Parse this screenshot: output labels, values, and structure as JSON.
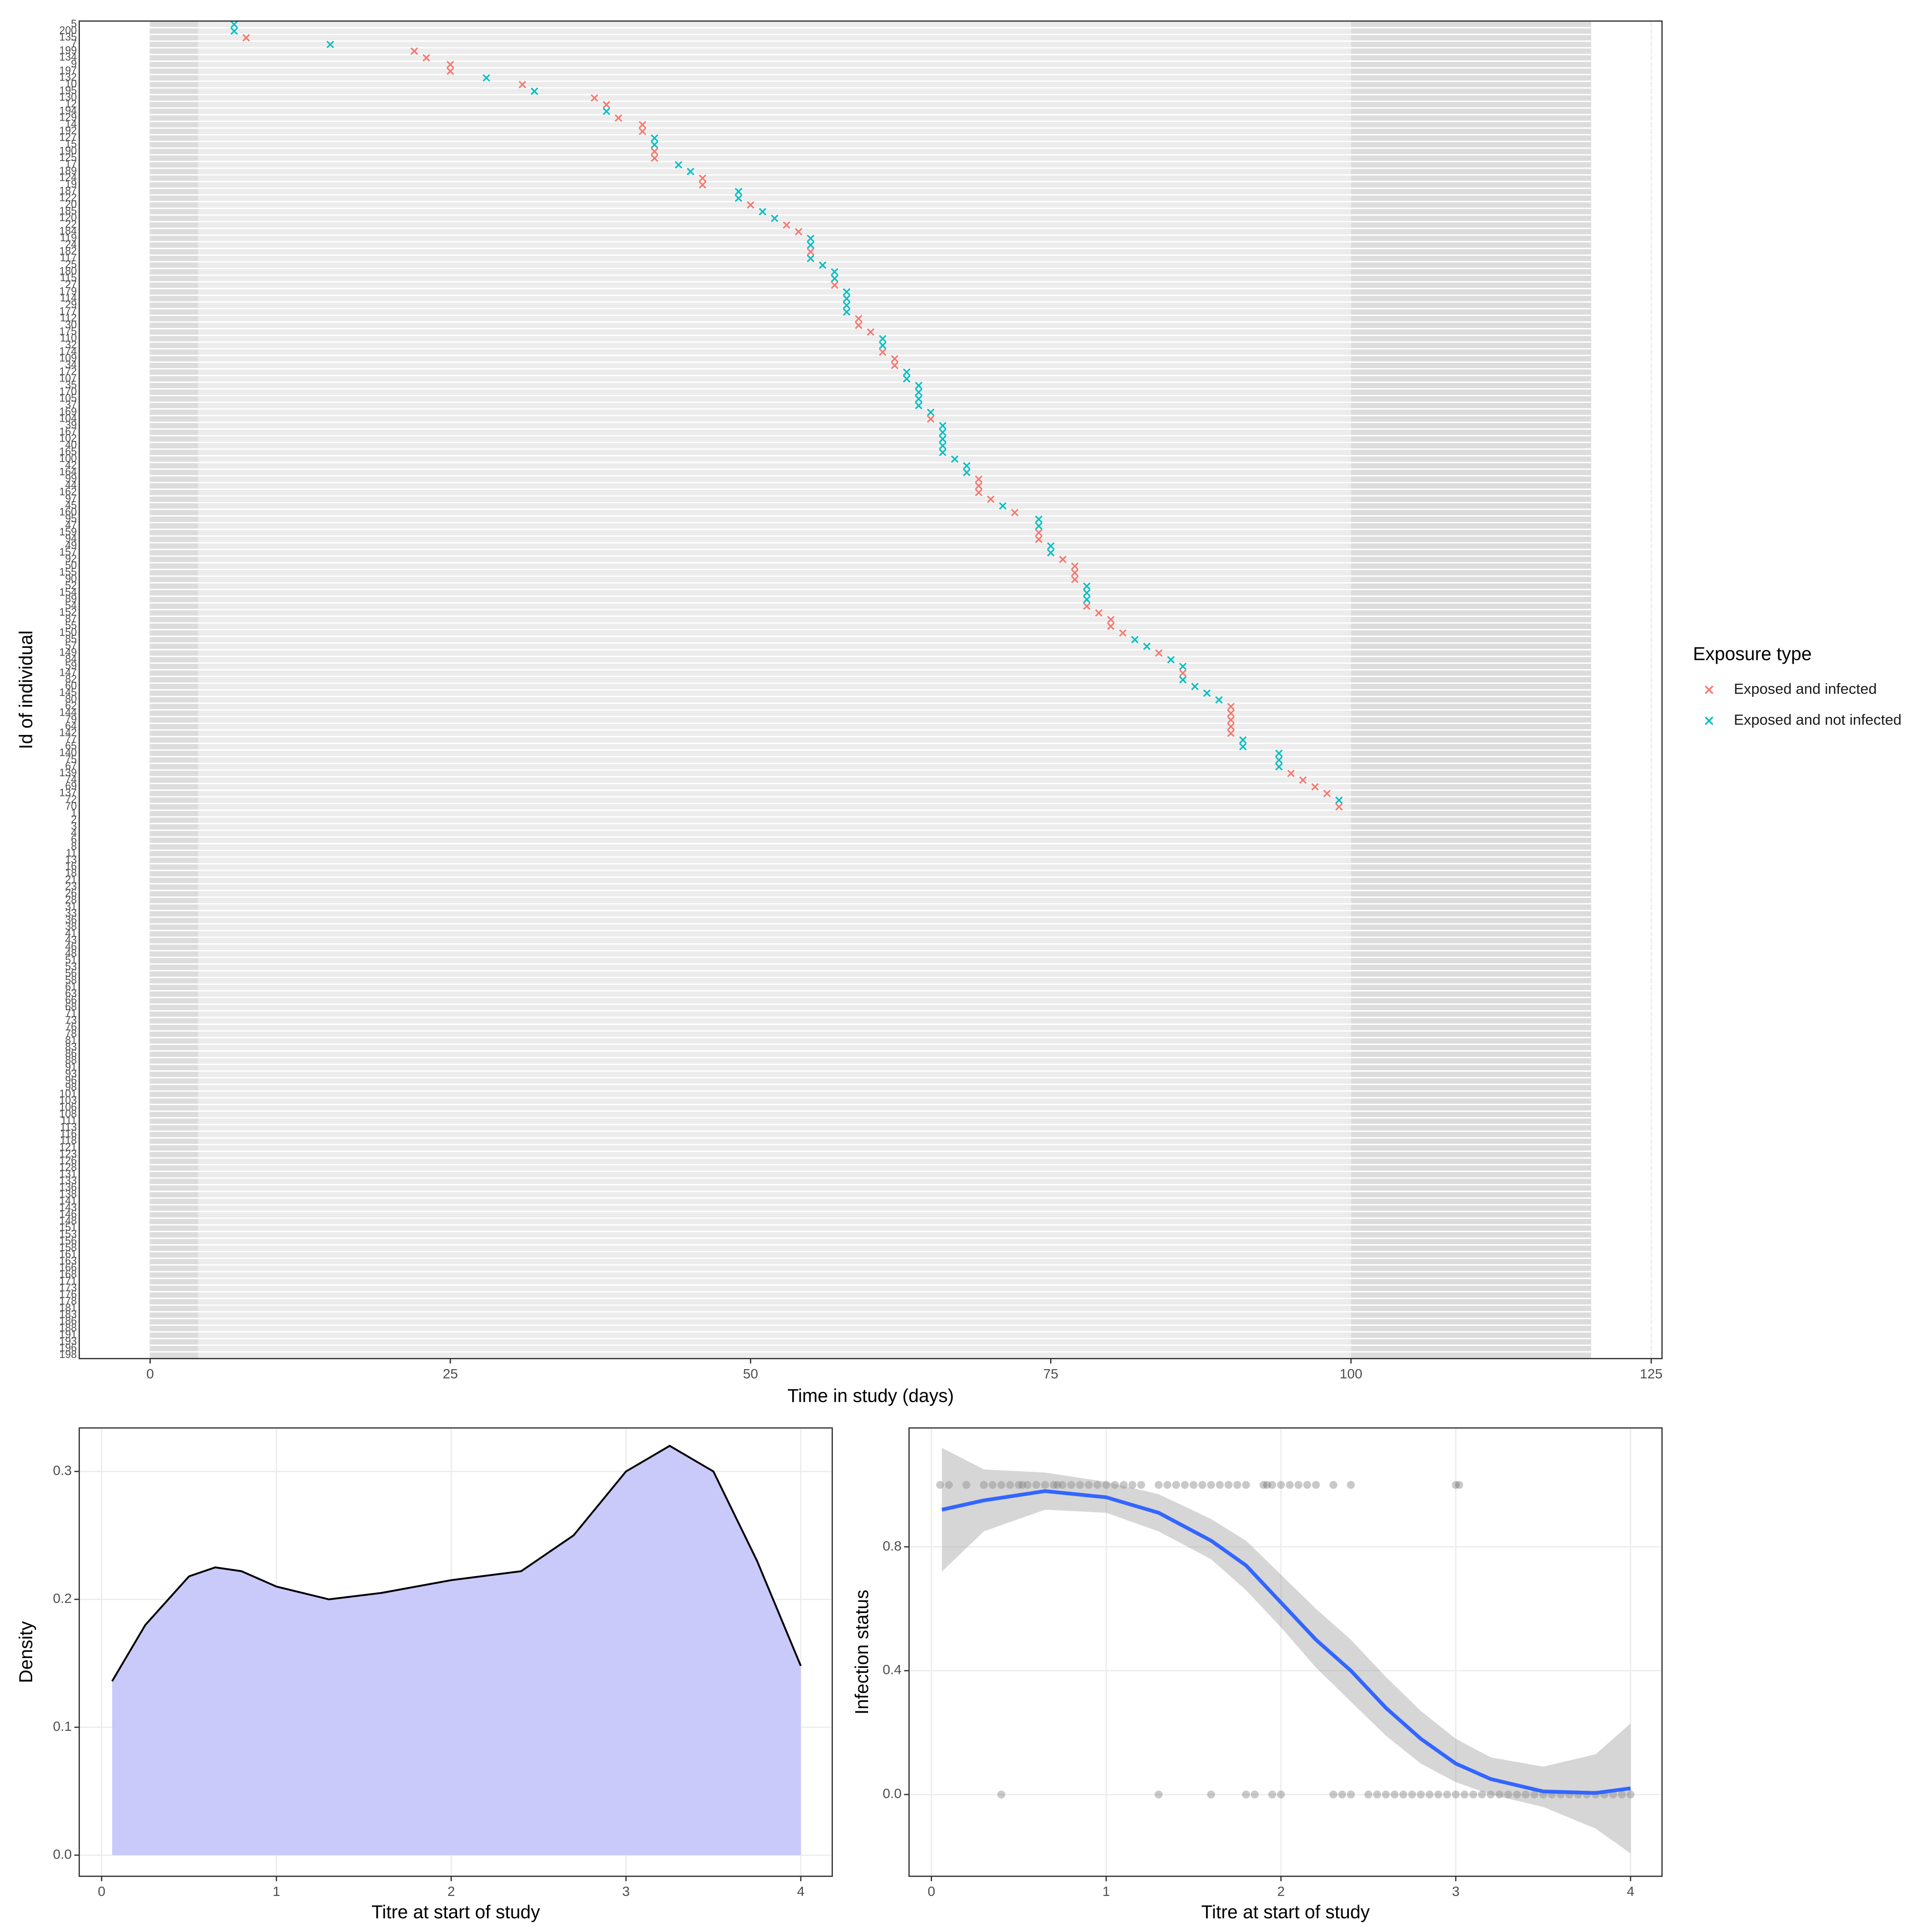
{
  "chart_data": [
    {
      "type": "timeline",
      "x_label": "Time in study (days)",
      "y_label": "Id of individual",
      "legend_title": "Exposure type",
      "xlim": [
        -5.9,
        125.9
      ],
      "xticks": [
        0,
        25,
        50,
        75,
        100,
        125
      ],
      "grid": true,
      "shaded_periods": [
        [
          0,
          4
        ],
        [
          100,
          120
        ]
      ],
      "categories": [
        "5",
        "200",
        "135",
        "7",
        "199",
        "134",
        "9",
        "197",
        "132",
        "10",
        "195",
        "130",
        "12",
        "194",
        "129",
        "14",
        "192",
        "127",
        "15",
        "190",
        "125",
        "17",
        "189",
        "124",
        "19",
        "187",
        "122",
        "20",
        "185",
        "120",
        "22",
        "184",
        "119",
        "24",
        "182",
        "117",
        "25",
        "180",
        "115",
        "27",
        "179",
        "114",
        "29",
        "177",
        "112",
        "30",
        "175",
        "110",
        "32",
        "174",
        "109",
        "34",
        "172",
        "107",
        "35",
        "170",
        "105",
        "37",
        "169",
        "104",
        "39",
        "167",
        "102",
        "40",
        "165",
        "100",
        "42",
        "164",
        "99",
        "44",
        "162",
        "97",
        "45",
        "160",
        "95",
        "47",
        "159",
        "94",
        "49",
        "157",
        "92",
        "50",
        "155",
        "90",
        "52",
        "154",
        "89",
        "54",
        "152",
        "87",
        "55",
        "150",
        "85",
        "57",
        "149",
        "84",
        "59",
        "147",
        "82",
        "60",
        "145",
        "80",
        "62",
        "144",
        "79",
        "64",
        "142",
        "77",
        "65",
        "140",
        "75",
        "67",
        "139",
        "74",
        "69",
        "137",
        "72",
        "70",
        "1",
        "2",
        "3",
        "4",
        "6",
        "8",
        "11",
        "13",
        "16",
        "18",
        "21",
        "23",
        "26",
        "28",
        "31",
        "33",
        "36",
        "38",
        "41",
        "43",
        "46",
        "48",
        "51",
        "53",
        "56",
        "58",
        "61",
        "63",
        "66",
        "68",
        "71",
        "73",
        "76",
        "78",
        "81",
        "83",
        "86",
        "88",
        "91",
        "93",
        "96",
        "98",
        "101",
        "103",
        "106",
        "108",
        "111",
        "113",
        "116",
        "118",
        "121",
        "123",
        "126",
        "128",
        "131",
        "133",
        "136",
        "138",
        "141",
        "143",
        "146",
        "148",
        "151",
        "153",
        "156",
        "158",
        "161",
        "163",
        "166",
        "168",
        "171",
        "173",
        "176",
        "178",
        "181",
        "183",
        "186",
        "188",
        "191",
        "193",
        "196",
        "198"
      ],
      "series": [
        {
          "name": "Exposed and infected",
          "color": "#f8766d",
          "values": [
            null,
            null,
            8,
            null,
            22,
            23,
            25,
            25,
            null,
            31,
            null,
            37,
            38,
            null,
            39,
            41,
            41,
            null,
            null,
            42,
            42,
            null,
            null,
            46,
            46,
            null,
            null,
            50,
            null,
            null,
            53,
            54,
            null,
            null,
            55,
            null,
            null,
            null,
            null,
            57,
            null,
            null,
            null,
            null,
            59,
            59,
            60,
            null,
            null,
            61,
            62,
            62,
            null,
            null,
            null,
            null,
            null,
            null,
            null,
            65,
            null,
            null,
            null,
            null,
            null,
            null,
            null,
            null,
            69,
            69,
            69,
            70,
            null,
            72,
            null,
            null,
            74,
            74,
            null,
            null,
            76,
            77,
            77,
            77,
            null,
            null,
            null,
            78,
            79,
            80,
            80,
            81,
            null,
            null,
            84,
            null,
            null,
            86,
            null,
            null,
            null,
            null,
            90,
            90,
            90,
            90,
            90,
            null,
            null,
            null,
            null,
            null,
            95,
            96,
            97,
            98,
            null,
            99,
            null,
            null,
            null,
            null,
            null,
            null,
            null,
            null,
            null,
            null,
            null,
            null,
            null,
            null,
            null,
            null,
            null,
            null,
            null,
            null,
            null,
            null,
            null,
            null,
            null,
            null,
            null,
            null,
            null,
            null,
            null,
            null,
            null,
            null,
            null,
            null,
            null,
            null,
            null,
            null,
            null,
            null,
            null,
            null,
            null,
            null,
            null,
            null,
            null,
            null,
            null,
            null,
            null,
            null,
            null,
            null,
            null,
            null,
            null,
            null,
            null,
            null,
            null,
            null,
            null,
            null,
            null,
            null,
            null,
            null,
            null,
            null,
            null,
            null,
            null,
            null,
            null,
            null,
            null,
            null,
            null,
            null
          ]
        },
        {
          "name": "Exposed and not infected",
          "color": "#00bfc4",
          "values": [
            7,
            7,
            null,
            15,
            null,
            null,
            null,
            null,
            28,
            null,
            32,
            null,
            null,
            38,
            null,
            null,
            null,
            42,
            42,
            null,
            null,
            44,
            45,
            null,
            null,
            49,
            49,
            null,
            51,
            52,
            null,
            null,
            55,
            55,
            null,
            55,
            56,
            57,
            57,
            null,
            58,
            58,
            58,
            58,
            null,
            null,
            null,
            61,
            61,
            null,
            null,
            null,
            63,
            63,
            64,
            64,
            64,
            64,
            65,
            null,
            66,
            66,
            66,
            66,
            66,
            67,
            68,
            68,
            null,
            null,
            null,
            null,
            71,
            null,
            74,
            74,
            null,
            null,
            75,
            75,
            null,
            null,
            null,
            null,
            78,
            78,
            78,
            null,
            null,
            null,
            null,
            null,
            82,
            83,
            null,
            85,
            86,
            null,
            86,
            87,
            88,
            89,
            null,
            null,
            null,
            null,
            null,
            91,
            91,
            94,
            94,
            94,
            null,
            null,
            null,
            null,
            99,
            null,
            null,
            null,
            null,
            null,
            null,
            null,
            null,
            null,
            null,
            null,
            null,
            null,
            null,
            null,
            null,
            null,
            null,
            null,
            null,
            null,
            null,
            null,
            null,
            null,
            null,
            null,
            null,
            null,
            null,
            null,
            null,
            null,
            null,
            null,
            null,
            null,
            null,
            null,
            null,
            null,
            null,
            null,
            null,
            null,
            null,
            null,
            null,
            null,
            null,
            null,
            null,
            null,
            null,
            null,
            null,
            null,
            null,
            null,
            null,
            null,
            null,
            null,
            null,
            null,
            null,
            null,
            null,
            null,
            null,
            null,
            null,
            null,
            null,
            null,
            null,
            null,
            null,
            null,
            null,
            null,
            null,
            null
          ]
        }
      ]
    },
    {
      "type": "area",
      "x_label": "Titre at start of study",
      "y_label": "Density",
      "color": "#000000",
      "fill": "#c9c9fa",
      "xlim": [
        -0.128,
        4.18
      ],
      "ylim": [
        -0.0165,
        0.334
      ],
      "xticks": [
        0,
        1,
        2,
        3,
        4
      ],
      "yticks": [
        {
          "value": 0,
          "label": "0.0"
        },
        0.1,
        0.2,
        0.3
      ],
      "grid": true,
      "x": [
        0.06,
        0.25,
        0.5,
        0.65,
        0.8,
        1.0,
        1.3,
        1.6,
        2.0,
        2.4,
        2.7,
        3.0,
        3.25,
        3.5,
        3.75,
        4.0
      ],
      "y": [
        0.136,
        0.18,
        0.218,
        0.225,
        0.222,
        0.21,
        0.2,
        0.205,
        0.215,
        0.222,
        0.25,
        0.3,
        0.32,
        0.3,
        0.23,
        0.148
      ]
    },
    {
      "type": "scatter",
      "x_label": "Titre at start of study",
      "y_label": "Infection status",
      "color": "#4d4d4d",
      "xlim": [
        -0.128,
        4.18
      ],
      "ylim": [
        -0.264,
        1.184
      ],
      "xticks": [
        0,
        1,
        2,
        3,
        4
      ],
      "yticks": [
        {
          "value": 0,
          "label": "0.0"
        },
        0.4,
        0.8
      ],
      "grid": true,
      "x": [
        0.05,
        0.1,
        0.2,
        0.3,
        0.35,
        0.4,
        0.45,
        0.5,
        0.52,
        0.55,
        0.6,
        0.65,
        0.7,
        0.72,
        0.75,
        0.8,
        0.85,
        0.9,
        0.95,
        1.0,
        1.05,
        1.1,
        1.15,
        1.2,
        1.3,
        1.35,
        1.4,
        1.45,
        1.5,
        1.55,
        1.6,
        1.65,
        1.7,
        1.75,
        1.8,
        1.9,
        1.92,
        1.95,
        2.0,
        2.05,
        2.1,
        2.15,
        2.2,
        2.3,
        2.4,
        3.0,
        3.02,
        0.4,
        1.3,
        1.6,
        1.8,
        1.85,
        1.95,
        2.0,
        2.3,
        2.35,
        2.4,
        2.5,
        2.55,
        2.6,
        2.65,
        2.7,
        2.75,
        2.8,
        2.85,
        2.9,
        2.95,
        3.0,
        3.05,
        3.1,
        3.15,
        3.2,
        3.25,
        3.3,
        3.35,
        3.4,
        3.45,
        3.5,
        3.55,
        3.6,
        3.65,
        3.7,
        3.75,
        3.8,
        3.85,
        3.9,
        3.95,
        4.0
      ],
      "y": [
        1,
        1,
        1,
        1,
        1,
        1,
        1,
        1,
        1,
        1,
        1,
        1,
        1,
        1,
        1,
        1,
        1,
        1,
        1,
        1,
        1,
        1,
        1,
        1,
        1,
        1,
        1,
        1,
        1,
        1,
        1,
        1,
        1,
        1,
        1,
        1,
        1,
        1,
        1,
        1,
        1,
        1,
        1,
        1,
        1,
        1,
        1,
        0,
        0,
        0,
        0,
        0,
        0,
        0,
        0,
        0,
        0,
        0,
        0,
        0,
        0,
        0,
        0,
        0,
        0,
        0,
        0,
        0,
        0,
        0,
        0,
        0,
        0,
        0,
        0,
        0,
        0,
        0,
        0,
        0,
        0,
        0,
        0,
        0,
        0,
        0,
        0,
        0
      ],
      "smooth": {
        "color": "#3366ff",
        "band_color": "#999999",
        "x": [
          0.06,
          0.3,
          0.65,
          1.0,
          1.3,
          1.6,
          1.8,
          2.0,
          2.2,
          2.4,
          2.6,
          2.8,
          3.0,
          3.2,
          3.5,
          3.8,
          4.0
        ],
        "y": [
          0.92,
          0.95,
          0.98,
          0.96,
          0.91,
          0.82,
          0.74,
          0.62,
          0.5,
          0.4,
          0.28,
          0.18,
          0.1,
          0.05,
          0.01,
          0.005,
          0.02
        ],
        "lower": [
          0.72,
          0.85,
          0.92,
          0.91,
          0.85,
          0.76,
          0.66,
          0.54,
          0.41,
          0.3,
          0.19,
          0.1,
          0.04,
          0,
          -0.04,
          -0.11,
          -0.19
        ],
        "upper": [
          1.12,
          1.05,
          1.04,
          1.01,
          0.97,
          0.89,
          0.82,
          0.71,
          0.6,
          0.5,
          0.38,
          0.27,
          0.18,
          0.12,
          0.09,
          0.13,
          0.23
        ]
      }
    }
  ]
}
